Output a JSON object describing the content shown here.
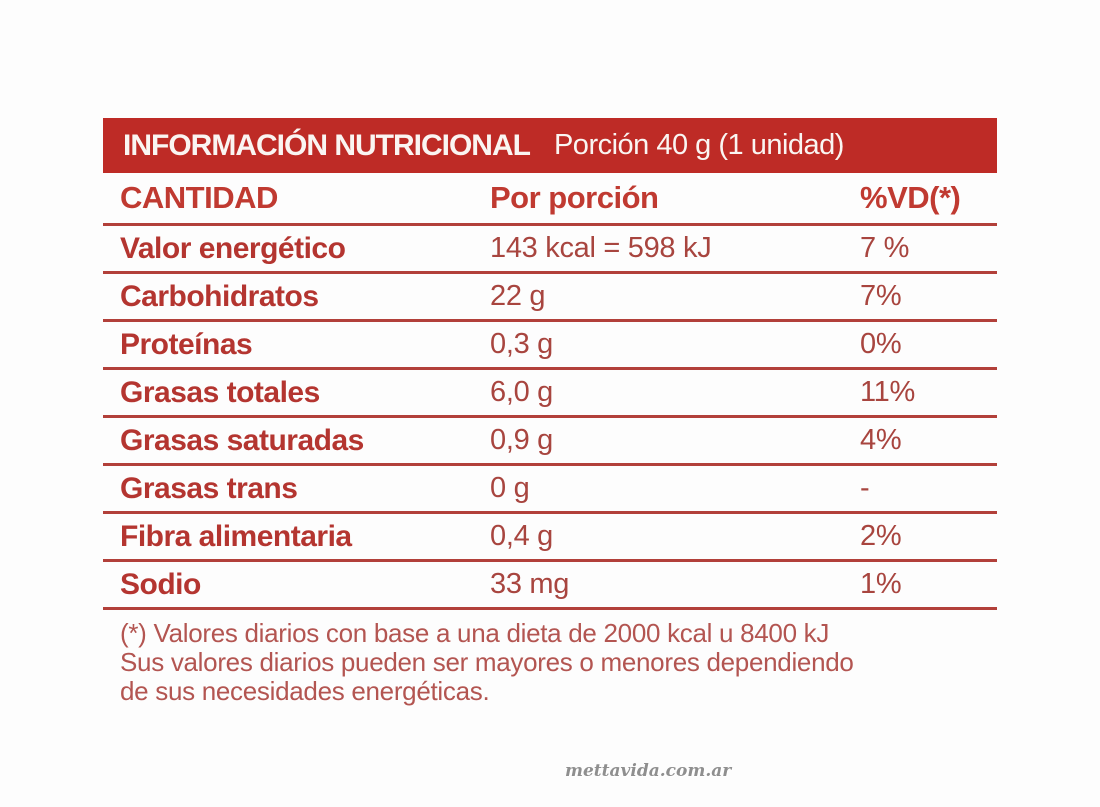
{
  "header": {
    "title": "INFORMACIÓN NUTRICIONAL",
    "portion": "Porción 40 g (1 unidad)"
  },
  "table": {
    "columns": [
      "CANTIDAD",
      "Por porción",
      "%VD(*)"
    ],
    "rows": [
      {
        "label": "Valor energético",
        "value": "143 kcal = 598 kJ",
        "vd": "7 %"
      },
      {
        "label": "Carbohidratos",
        "value": "22 g",
        "vd": "7%"
      },
      {
        "label": "Proteínas",
        "value": "0,3 g",
        "vd": "0%"
      },
      {
        "label": "Grasas totales",
        "value": "6,0 g",
        "vd": "11%"
      },
      {
        "label": "Grasas saturadas",
        "value": "0,9 g",
        "vd": "4%"
      },
      {
        "label": "Grasas trans",
        "value": "0 g",
        "vd": "-"
      },
      {
        "label": "Fibra alimentaria",
        "value": "0,4 g",
        "vd": "2%"
      },
      {
        "label": "Sodio",
        "value": "33 mg",
        "vd": "1%"
      }
    ]
  },
  "footnote": {
    "lines": [
      "(*) Valores diarios con base a una dieta de 2000 kcal u 8400 kJ",
      "Sus valores diarios pueden ser mayores o menores dependiendo",
      "de sus necesidades energéticas."
    ]
  },
  "watermark": "mettavida.com.ar",
  "colors": {
    "bar_red": "#BE2B26",
    "header_text": "#FAF5F2",
    "heading_red": "#C03A31",
    "label_red": "#B43530",
    "value_red": "#A8453F",
    "line_red": "#B2403A",
    "footnote_red": "#B35551",
    "watermark_gray": "#8F8F8F",
    "background": "#FDFDFD"
  }
}
